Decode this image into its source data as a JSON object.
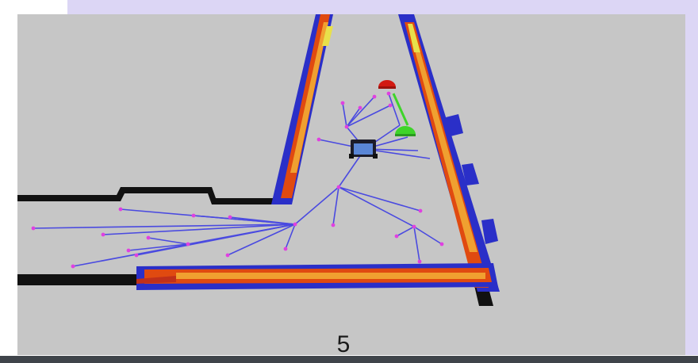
{
  "slide": {
    "number": "5"
  },
  "colors": {
    "floor": "#c6c6c6",
    "wall": "#111111",
    "inflation_blue": "#2a2fc8",
    "costmap_red": "#e04a10",
    "costmap_orange": "#f0a030",
    "tree_edge": "#4a4ae0",
    "tree_node": "#e040e0",
    "goal_red": "#d21a12",
    "waypoint_green": "#3ed42a",
    "band": "#dcd6f5",
    "bottom_bar": "#3f444a"
  },
  "icons": [
    "robot-icon",
    "goal-marker-icon",
    "waypoint-marker-icon"
  ]
}
